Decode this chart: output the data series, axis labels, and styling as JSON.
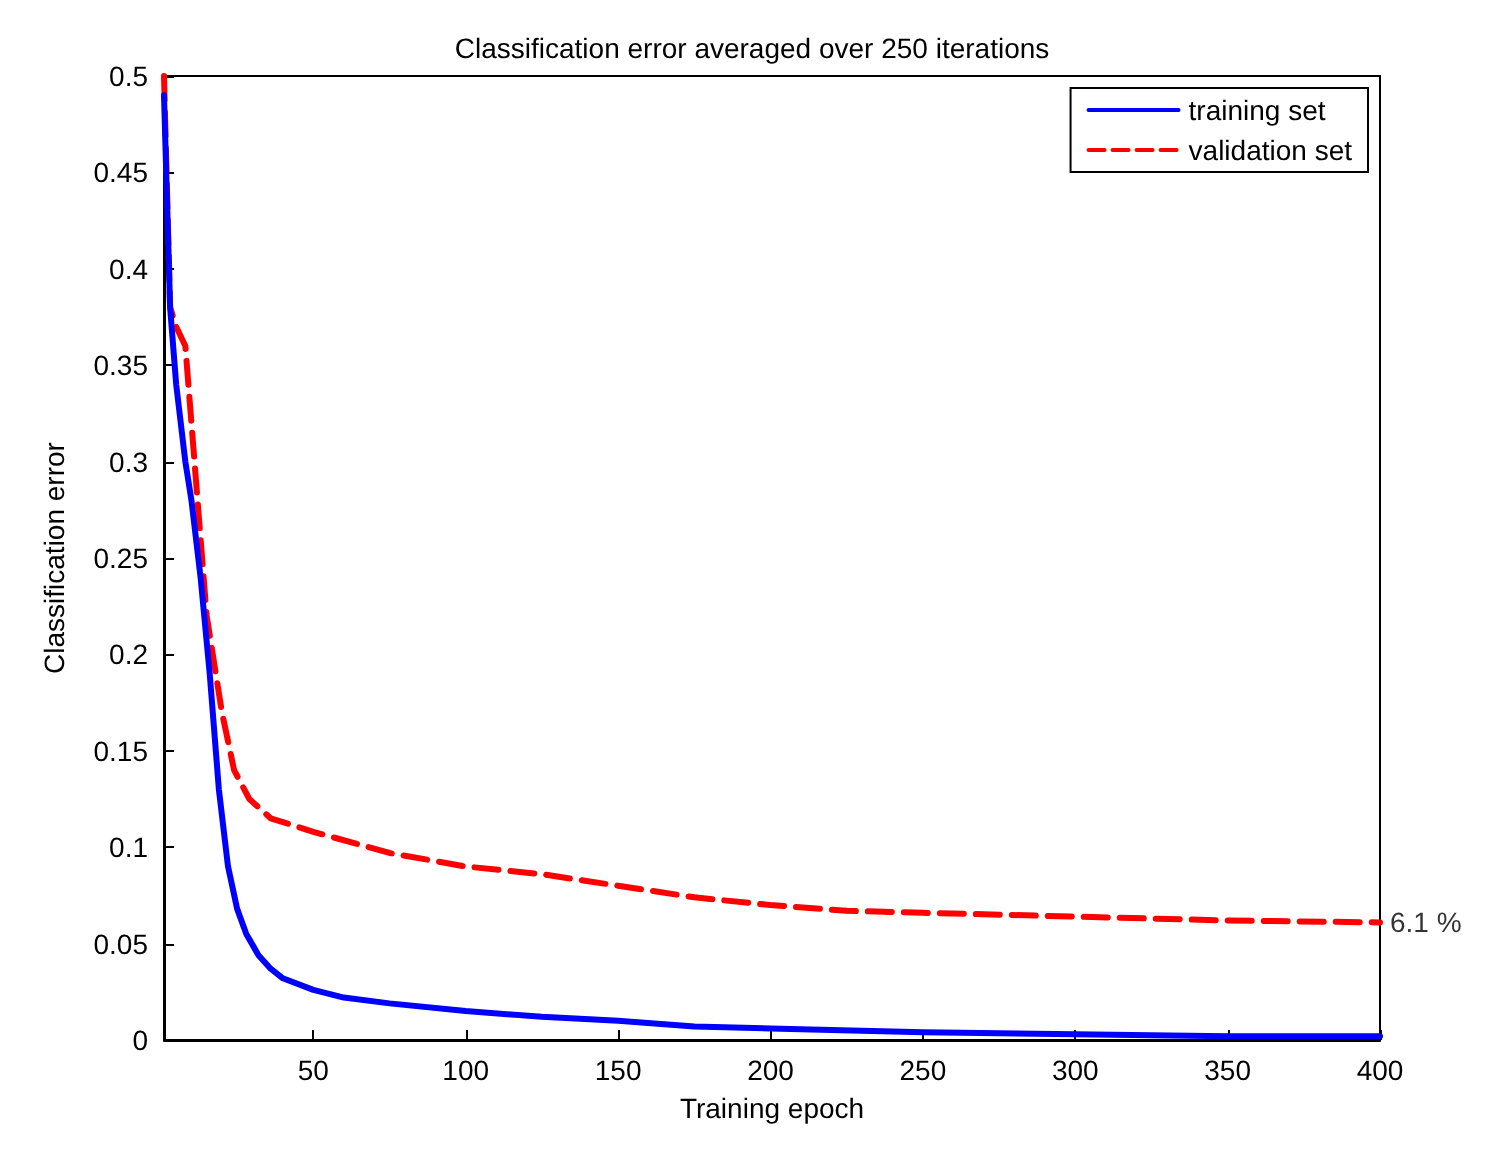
{
  "chart_data": {
    "type": "line",
    "title": "Classification error averaged over 250 iterations",
    "xlabel": "Training epoch",
    "ylabel": "Classification error",
    "xlim": [
      1,
      400
    ],
    "xticks": [
      50,
      100,
      150,
      200,
      250,
      300,
      350,
      400
    ],
    "ylim": [
      0,
      0.5
    ],
    "yticks": [
      0,
      0.05,
      0.1,
      0.15,
      0.2,
      0.25,
      0.3,
      0.35,
      0.4,
      0.45,
      0.5
    ],
    "grid": false,
    "legend": "top right",
    "annotations": [
      {
        "text": "6.1 %",
        "x": 400,
        "y": 0.061
      }
    ],
    "series": [
      {
        "name": "training set",
        "color": "#0000ff",
        "line_style": "solid",
        "x": [
          1,
          3,
          5,
          8,
          10,
          13,
          16,
          19,
          22,
          25,
          28,
          32,
          36,
          40,
          50,
          60,
          75,
          100,
          125,
          150,
          175,
          200,
          250,
          300,
          350,
          400
        ],
        "values": [
          0.49,
          0.38,
          0.34,
          0.3,
          0.28,
          0.24,
          0.19,
          0.13,
          0.09,
          0.068,
          0.055,
          0.044,
          0.037,
          0.032,
          0.026,
          0.022,
          0.019,
          0.015,
          0.012,
          0.01,
          0.007,
          0.006,
          0.004,
          0.003,
          0.002,
          0.002
        ]
      },
      {
        "name": "validation set",
        "color": "#ff0000",
        "line_style": "dashed",
        "x": [
          1,
          3,
          5,
          8,
          11,
          15,
          20,
          24,
          29,
          36,
          50,
          75,
          100,
          125,
          150,
          175,
          200,
          225,
          250,
          300,
          350,
          400
        ],
        "values": [
          0.5,
          0.38,
          0.37,
          0.36,
          0.3,
          0.22,
          0.17,
          0.14,
          0.125,
          0.115,
          0.108,
          0.097,
          0.09,
          0.086,
          0.08,
          0.074,
          0.07,
          0.067,
          0.066,
          0.064,
          0.062,
          0.061
        ]
      }
    ]
  }
}
